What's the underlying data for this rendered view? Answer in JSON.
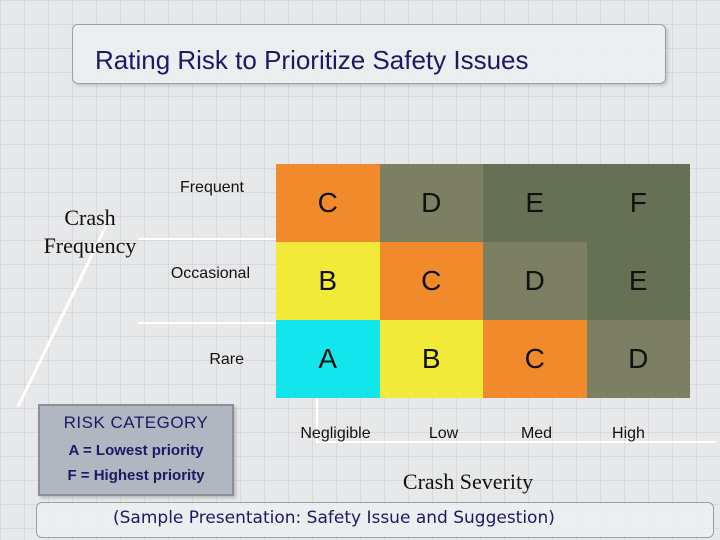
{
  "title": "Rating Risk to Prioritize Safety Issues",
  "y_axis_label": "Crash Frequency",
  "x_axis_label": "Crash Severity",
  "rows": [
    {
      "label": "Frequent",
      "cells": [
        "C",
        "D",
        "E",
        "F"
      ],
      "colors": [
        "#f08a2a",
        "#7c7f61",
        "#667055",
        "#667055"
      ]
    },
    {
      "label": "Occasional",
      "cells": [
        "B",
        "C",
        "D",
        "E"
      ],
      "colors": [
        "#f2ea38",
        "#f08a2a",
        "#7c7f61",
        "#667055"
      ]
    },
    {
      "label": "Rare",
      "cells": [
        "A",
        "B",
        "C",
        "D"
      ],
      "colors": [
        "#12e6ec",
        "#f2ea38",
        "#f08a2a",
        "#7c7f61"
      ]
    }
  ],
  "columns": [
    "Negligible",
    "Low",
    "Med",
    "High"
  ],
  "risk_category": {
    "title": "RISK CATEGORY",
    "lowest": "A = Lowest priority",
    "highest": "F = Highest priority"
  },
  "footer": "(Sample Presentation: Safety Issue and Suggestion)"
}
